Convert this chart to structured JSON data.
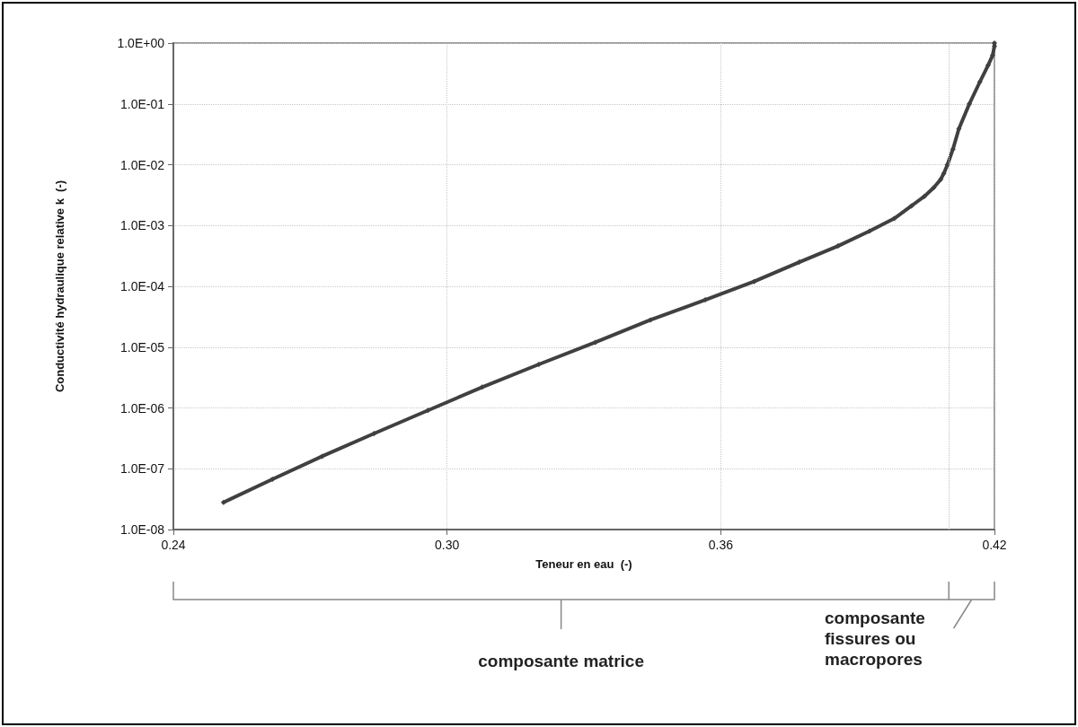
{
  "chart_data": {
    "type": "line",
    "xlabel": "Teneur en eau  (-)",
    "ylabel": "Conductivité hydraulique relative k  (-)",
    "annotations": [
      "composante matrice",
      "composante fissures ou macropores"
    ],
    "x": [
      0.251,
      0.2617,
      0.2726,
      0.284,
      0.2958,
      0.3077,
      0.3201,
      0.3325,
      0.3446,
      0.3566,
      0.3673,
      0.3772,
      0.3857,
      0.3926,
      0.398,
      0.4018,
      0.4046,
      0.4067,
      0.4082,
      0.4089,
      0.4097,
      0.4109,
      0.4122,
      0.4145,
      0.4168,
      0.4186,
      0.4196,
      0.42,
      0.42
    ],
    "series": [
      {
        "color": "#404040",
        "values": [
          2.8e-08,
          6.7e-08,
          1.6e-07,
          3.8e-07,
          9.1e-07,
          2.2e-06,
          5.2e-06,
          1.2e-05,
          2.8e-05,
          6e-05,
          0.00012,
          0.00025,
          0.00046,
          0.00081,
          0.0013,
          0.0021,
          0.003,
          0.0042,
          0.0057,
          0.0072,
          0.01,
          0.018,
          0.039,
          0.1,
          0.23,
          0.43,
          0.63,
          0.89,
          1.0
        ]
      }
    ],
    "xlim": [
      0.24,
      0.42
    ],
    "xticks": [
      {
        "value": 0.24,
        "label": "0.24"
      },
      {
        "value": 0.3,
        "label": "0.30"
      },
      {
        "value": 0.36,
        "label": "0.36"
      },
      {
        "value": 0.42,
        "label": "0.42"
      }
    ],
    "ylim": [
      1e-08,
      1
    ],
    "yticks": [
      {
        "value": 1e-08,
        "label": "1.0E-08"
      },
      {
        "value": 1e-07,
        "label": "1.0E-07"
      },
      {
        "value": 1e-06,
        "label": "1.0E-06"
      },
      {
        "value": 1e-05,
        "label": "1.0E-05"
      },
      {
        "value": 0.0001,
        "label": "1.0E-04"
      },
      {
        "value": 0.001,
        "label": "1.0E-03"
      },
      {
        "value": 0.01,
        "label": "1.0E-02"
      },
      {
        "value": 0.1,
        "label": "1.0E-01"
      },
      {
        "value": 1,
        "label": "1.0E+00"
      }
    ],
    "log": "y",
    "grid": true,
    "marker": "diamond",
    "line_style": "solid",
    "ref_lines": [
      {
        "axis": "x",
        "value": 0.41,
        "color": "#c0c0c0",
        "line_style": "dotted"
      }
    ]
  }
}
